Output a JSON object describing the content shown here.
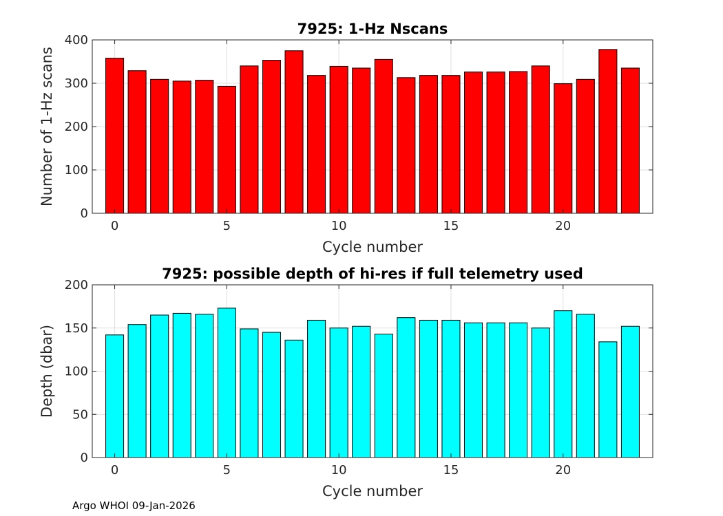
{
  "footer": {
    "note": "Argo WHOI 09-Jan-2026"
  },
  "chart_data": [
    {
      "type": "bar",
      "title": "7925: 1-Hz Nscans",
      "xlabel": "Cycle number",
      "ylabel": "Number of 1-Hz scans",
      "x": [
        0,
        1,
        2,
        3,
        4,
        5,
        6,
        7,
        8,
        9,
        10,
        11,
        12,
        13,
        14,
        15,
        16,
        17,
        18,
        19,
        20,
        21,
        22,
        23
      ],
      "values": [
        358,
        329,
        309,
        305,
        307,
        293,
        340,
        353,
        375,
        318,
        339,
        335,
        355,
        313,
        318,
        318,
        326,
        326,
        327,
        340,
        299,
        309,
        378,
        335
      ],
      "xlim": [
        -1,
        24
      ],
      "ylim": [
        0,
        400
      ],
      "xticks": [
        0,
        5,
        10,
        15,
        20
      ],
      "yticks": [
        0,
        100,
        200,
        300,
        400
      ],
      "bar_color": "#ff0000",
      "grid": true
    },
    {
      "type": "bar",
      "title": "7925: possible depth of hi-res if full telemetry used",
      "xlabel": "Cycle number",
      "ylabel": "Depth (dbar)",
      "x": [
        0,
        1,
        2,
        3,
        4,
        5,
        6,
        7,
        8,
        9,
        10,
        11,
        12,
        13,
        14,
        15,
        16,
        17,
        18,
        19,
        20,
        21,
        22,
        23
      ],
      "values": [
        142,
        154,
        165,
        167,
        166,
        173,
        149,
        145,
        136,
        159,
        150,
        152,
        143,
        162,
        159,
        159,
        156,
        156,
        156,
        150,
        170,
        166,
        134,
        152
      ],
      "xlim": [
        -1,
        24
      ],
      "ylim": [
        0,
        200
      ],
      "xticks": [
        0,
        5,
        10,
        15,
        20
      ],
      "yticks": [
        0,
        50,
        100,
        150,
        200
      ],
      "bar_color": "#00ffff",
      "grid": true
    }
  ]
}
